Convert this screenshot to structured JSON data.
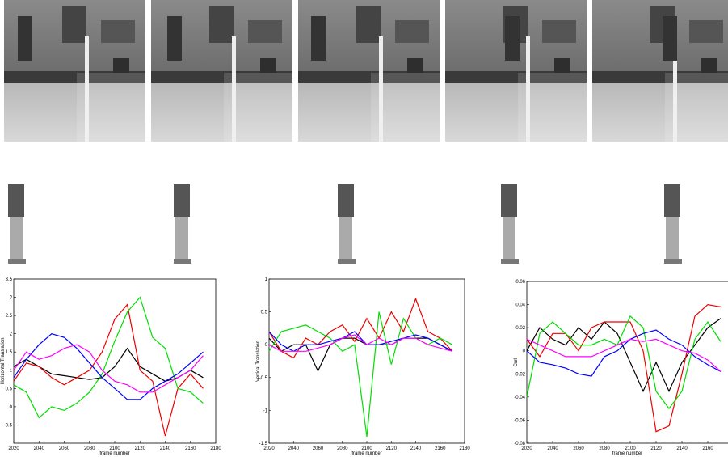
{
  "chart_data": [
    {
      "type": "line",
      "xlabel": "frame number",
      "ylabel": "Horizontal Translation",
      "x": [
        2020,
        2030,
        2040,
        2050,
        2060,
        2070,
        2080,
        2090,
        2100,
        2110,
        2120,
        2130,
        2140,
        2150,
        2160,
        2170
      ],
      "xlim": [
        2020,
        2180
      ],
      "ylim": [
        -1,
        3.5
      ],
      "xticks": [
        2020,
        2040,
        2060,
        2080,
        2100,
        2120,
        2140,
        2160,
        2180
      ],
      "yticks": [
        -0.5,
        0,
        0.5,
        1,
        1.5,
        2,
        2.5,
        3,
        3.5
      ],
      "series": [
        {
          "color": "#000000",
          "values": [
            1.1,
            1.3,
            1.1,
            0.9,
            0.85,
            0.8,
            0.75,
            0.8,
            1.1,
            1.6,
            1.1,
            0.9,
            0.7,
            0.8,
            1.0,
            0.8
          ]
        },
        {
          "color": "#ee0000",
          "values": [
            0.7,
            1.2,
            1.1,
            0.8,
            0.6,
            0.8,
            1.0,
            1.5,
            2.4,
            2.8,
            1.0,
            0.7,
            -0.8,
            0.5,
            0.9,
            0.5
          ]
        },
        {
          "color": "#00dd00",
          "values": [
            0.6,
            0.4,
            -0.3,
            0.0,
            -0.1,
            0.1,
            0.4,
            0.9,
            1.8,
            2.6,
            3.0,
            1.9,
            1.6,
            0.5,
            0.4,
            0.1
          ]
        },
        {
          "color": "#0000ff",
          "values": [
            0.8,
            1.3,
            1.7,
            2.0,
            1.9,
            1.6,
            1.2,
            0.8,
            0.5,
            0.2,
            0.2,
            0.5,
            0.7,
            0.9,
            1.2,
            1.5
          ]
        },
        {
          "color": "#ff00ff",
          "values": [
            1.0,
            1.5,
            1.3,
            1.4,
            1.6,
            1.7,
            1.5,
            1.0,
            0.7,
            0.6,
            0.4,
            0.4,
            0.6,
            0.8,
            1.0,
            1.4
          ]
        }
      ]
    },
    {
      "type": "line",
      "xlabel": "frame number",
      "ylabel": "Vertical Translation",
      "x": [
        2020,
        2030,
        2040,
        2050,
        2060,
        2070,
        2080,
        2090,
        2100,
        2110,
        2120,
        2130,
        2140,
        2150,
        2160,
        2170
      ],
      "xlim": [
        2020,
        2180
      ],
      "ylim": [
        -1.5,
        1
      ],
      "xticks": [
        2020,
        2040,
        2060,
        2080,
        2100,
        2120,
        2140,
        2160,
        2180
      ],
      "yticks": [
        -1.5,
        -1,
        -0.5,
        0,
        0.5,
        1
      ],
      "series": [
        {
          "color": "#000000",
          "values": [
            0.1,
            -0.1,
            0.0,
            0.0,
            -0.4,
            0.0,
            0.1,
            0.1,
            0.0,
            0.0,
            0.0,
            0.1,
            0.1,
            0.1,
            0.0,
            -0.1
          ]
        },
        {
          "color": "#ee0000",
          "values": [
            0.2,
            -0.1,
            -0.2,
            0.1,
            0.0,
            0.2,
            0.3,
            0.05,
            0.4,
            0.1,
            0.5,
            0.2,
            0.7,
            0.2,
            0.1,
            -0.1
          ]
        },
        {
          "color": "#00dd00",
          "values": [
            -0.1,
            0.2,
            0.25,
            0.3,
            0.2,
            0.1,
            -0.1,
            0.0,
            -1.4,
            0.5,
            -0.3,
            0.4,
            0.1,
            0.0,
            0.1,
            0.0
          ]
        },
        {
          "color": "#0000ff",
          "values": [
            0.2,
            0.0,
            -0.1,
            0.0,
            0.0,
            0.05,
            0.1,
            0.2,
            0.0,
            0.0,
            0.05,
            0.1,
            0.15,
            0.1,
            0.0,
            -0.1
          ]
        },
        {
          "color": "#ff00ff",
          "values": [
            0.0,
            -0.1,
            -0.1,
            -0.1,
            -0.05,
            0.0,
            0.1,
            0.15,
            0.0,
            0.1,
            0.0,
            0.1,
            0.1,
            0.0,
            -0.05,
            -0.1
          ]
        }
      ]
    },
    {
      "type": "line",
      "xlabel": "frame number",
      "ylabel": "Curl",
      "x": [
        2020,
        2030,
        2040,
        2050,
        2060,
        2070,
        2080,
        2090,
        2100,
        2110,
        2120,
        2130,
        2140,
        2150,
        2160,
        2170
      ],
      "xlim": [
        2020,
        2180
      ],
      "ylim": [
        -0.08,
        0.06
      ],
      "xticks": [
        2020,
        2040,
        2060,
        2080,
        2100,
        2120,
        2140,
        2160
      ],
      "yticks": [
        -0.08,
        -0.06,
        -0.04,
        -0.02,
        0,
        0.02,
        0.04,
        0.06
      ],
      "series": [
        {
          "color": "#000000",
          "values": [
            0.0,
            0.02,
            0.01,
            0.005,
            0.02,
            0.01,
            0.025,
            0.015,
            -0.01,
            -0.035,
            -0.01,
            -0.035,
            -0.01,
            0.005,
            0.02,
            0.028
          ]
        },
        {
          "color": "#ee0000",
          "values": [
            0.01,
            -0.005,
            0.015,
            0.015,
            0.0,
            0.02,
            0.025,
            0.025,
            0.025,
            0.0,
            -0.07,
            -0.065,
            -0.02,
            0.03,
            0.04,
            0.038
          ]
        },
        {
          "color": "#00dd00",
          "values": [
            -0.04,
            0.015,
            0.025,
            0.015,
            0.005,
            0.005,
            0.01,
            0.005,
            0.03,
            0.02,
            -0.035,
            -0.05,
            -0.035,
            0.01,
            0.025,
            0.008
          ]
        },
        {
          "color": "#0000ff",
          "values": [
            0.0,
            -0.01,
            -0.012,
            -0.015,
            -0.02,
            -0.022,
            -0.005,
            0.0,
            0.01,
            0.015,
            0.018,
            0.01,
            0.005,
            -0.005,
            -0.012,
            -0.018
          ]
        },
        {
          "color": "#ff00ff",
          "values": [
            0.01,
            0.005,
            0.0,
            -0.005,
            -0.005,
            -0.005,
            0.0,
            0.005,
            0.01,
            0.008,
            0.01,
            0.005,
            0.0,
            -0.002,
            -0.008,
            -0.018
          ]
        }
      ]
    }
  ]
}
